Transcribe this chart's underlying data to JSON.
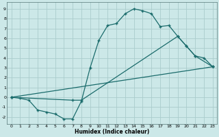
{
  "xlabel": "Humidex (Indice chaleur)",
  "bg_color": "#cce8e8",
  "grid_color": "#aacccc",
  "line_color": "#1a6b6b",
  "xlim": [
    -0.5,
    23.5
  ],
  "ylim": [
    -2.7,
    9.7
  ],
  "xticks": [
    0,
    1,
    2,
    3,
    4,
    5,
    6,
    7,
    8,
    9,
    10,
    11,
    12,
    13,
    14,
    15,
    16,
    17,
    18,
    19,
    20,
    21,
    22,
    23
  ],
  "yticks": [
    -2,
    -1,
    0,
    1,
    2,
    3,
    4,
    5,
    6,
    7,
    8,
    9
  ],
  "line1_x": [
    0,
    1,
    2,
    3,
    4,
    5,
    6,
    7,
    8,
    9,
    10,
    11,
    12,
    13,
    14,
    15,
    16,
    17,
    18,
    19,
    20,
    21,
    22,
    23
  ],
  "line1_y": [
    0.0,
    -0.1,
    -0.3,
    -1.3,
    -1.5,
    -1.7,
    -2.2,
    -2.2,
    -0.4,
    3.0,
    5.8,
    7.3,
    7.5,
    8.5,
    9.0,
    8.8,
    8.5,
    7.2,
    7.3,
    6.2,
    5.2,
    4.2,
    4.0,
    3.1
  ],
  "line2_x": [
    0,
    23
  ],
  "line2_y": [
    0.0,
    3.1
  ],
  "line3_x": [
    0,
    7,
    8,
    19,
    20,
    21,
    23
  ],
  "line3_y": [
    0.0,
    -0.3,
    -0.3,
    6.2,
    5.2,
    4.2,
    3.1
  ]
}
